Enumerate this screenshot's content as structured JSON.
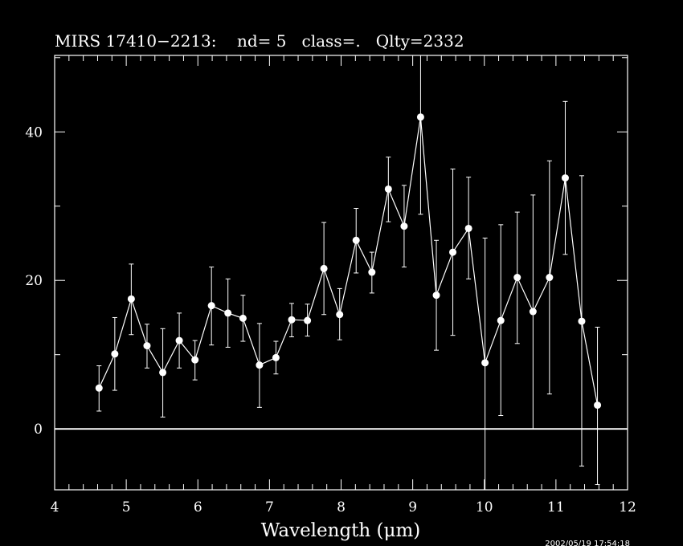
{
  "chart_data": {
    "type": "scatter",
    "title": "MIRS 17410−2213:    nd= 5   class=.   Qlty=2332",
    "xlabel": "Wavelength (μm)",
    "ylabel": "",
    "xlim": [
      4,
      12
    ],
    "ylim": [
      -8.2,
      50.3
    ],
    "x_ticks": [
      4,
      5,
      6,
      7,
      8,
      9,
      10,
      11,
      12
    ],
    "x_tick_labels": [
      "4",
      "5",
      "6",
      "7",
      "8",
      "9",
      "10",
      "11",
      "12"
    ],
    "y_ticks": [
      0,
      20,
      40
    ],
    "y_tick_labels": [
      "0",
      "20",
      "40"
    ],
    "zero_line": 0,
    "grid": false,
    "series": [
      {
        "points": [
          {
            "x": 4.62,
            "y": 5.5,
            "err_lo": 2.4,
            "err_hi": 8.5
          },
          {
            "x": 4.84,
            "y": 10.1,
            "err_lo": 5.2,
            "err_hi": 15.0
          },
          {
            "x": 5.07,
            "y": 17.5,
            "err_lo": 12.7,
            "err_hi": 22.2
          },
          {
            "x": 5.29,
            "y": 11.2,
            "err_lo": 8.2,
            "err_hi": 14.1
          },
          {
            "x": 5.51,
            "y": 7.6,
            "err_lo": 1.6,
            "err_hi": 13.5
          },
          {
            "x": 5.74,
            "y": 11.9,
            "err_lo": 8.2,
            "err_hi": 15.6
          },
          {
            "x": 5.96,
            "y": 9.3,
            "err_lo": 6.6,
            "err_hi": 11.9
          },
          {
            "x": 6.19,
            "y": 16.6,
            "err_lo": 11.3,
            "err_hi": 21.8
          },
          {
            "x": 6.42,
            "y": 15.6,
            "err_lo": 11.0,
            "err_hi": 20.2
          },
          {
            "x": 6.63,
            "y": 14.9,
            "err_lo": 11.8,
            "err_hi": 18.0
          },
          {
            "x": 6.86,
            "y": 8.6,
            "err_lo": 2.9,
            "err_hi": 14.2
          },
          {
            "x": 7.09,
            "y": 9.6,
            "err_lo": 7.4,
            "err_hi": 11.8
          },
          {
            "x": 7.31,
            "y": 14.7,
            "err_lo": 12.4,
            "err_hi": 16.9
          },
          {
            "x": 7.53,
            "y": 14.6,
            "err_lo": 12.5,
            "err_hi": 16.8
          },
          {
            "x": 7.76,
            "y": 21.6,
            "err_lo": 15.4,
            "err_hi": 27.8
          },
          {
            "x": 7.98,
            "y": 15.4,
            "err_lo": 12.0,
            "err_hi": 18.9
          },
          {
            "x": 8.21,
            "y": 25.4,
            "err_lo": 21.0,
            "err_hi": 29.7
          },
          {
            "x": 8.43,
            "y": 21.1,
            "err_lo": 18.3,
            "err_hi": 23.8
          },
          {
            "x": 8.66,
            "y": 32.3,
            "err_lo": 27.9,
            "err_hi": 36.6
          },
          {
            "x": 8.88,
            "y": 27.3,
            "err_lo": 21.8,
            "err_hi": 32.8
          },
          {
            "x": 9.11,
            "y": 42.0,
            "err_lo": 28.9,
            "err_hi": 50.3
          },
          {
            "x": 9.33,
            "y": 18.0,
            "err_lo": 10.6,
            "err_hi": 25.4
          },
          {
            "x": 9.56,
            "y": 23.8,
            "err_lo": 12.6,
            "err_hi": 35.0
          },
          {
            "x": 9.78,
            "y": 27.0,
            "err_lo": 20.2,
            "err_hi": 33.9
          },
          {
            "x": 10.01,
            "y": 8.9,
            "err_lo": -8.2,
            "err_hi": 25.7
          },
          {
            "x": 10.23,
            "y": 14.6,
            "err_lo": 1.8,
            "err_hi": 27.5
          },
          {
            "x": 10.46,
            "y": 20.4,
            "err_lo": 11.5,
            "err_hi": 29.2
          },
          {
            "x": 10.68,
            "y": 15.8,
            "err_lo": 0.0,
            "err_hi": 31.5
          },
          {
            "x": 10.91,
            "y": 20.4,
            "err_lo": 4.7,
            "err_hi": 36.1
          },
          {
            "x": 11.13,
            "y": 33.8,
            "err_lo": 23.5,
            "err_hi": 44.1
          },
          {
            "x": 11.36,
            "y": 14.5,
            "err_lo": -5.0,
            "err_hi": 34.1
          },
          {
            "x": 11.58,
            "y": 3.2,
            "err_lo": -7.5,
            "err_hi": 13.7
          }
        ]
      }
    ],
    "colors": {
      "background": "#000000",
      "foreground": "#ffffff"
    }
  },
  "timestamp": "2002/05/19 17:54:18"
}
